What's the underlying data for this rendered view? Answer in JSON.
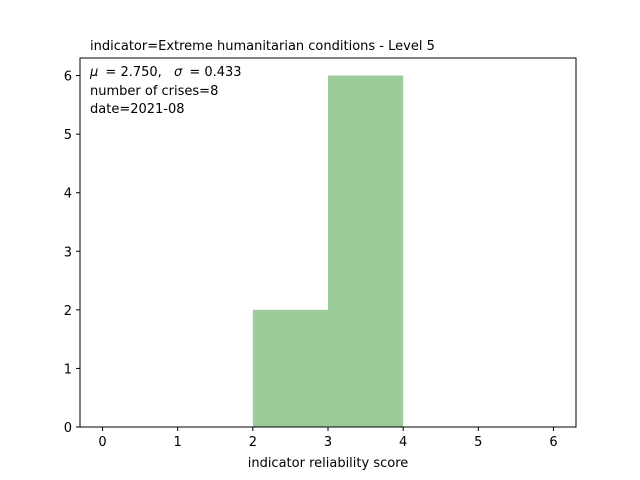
{
  "chart_data": {
    "type": "bar",
    "title": "indicator=Extreme humanitarian conditions - Level 5",
    "xlabel": "indicator reliability score",
    "ylabel": "",
    "bins": [
      {
        "x0": 2,
        "x1": 3,
        "value": 2
      },
      {
        "x0": 3,
        "x1": 4,
        "value": 6
      }
    ],
    "xlim": [
      -0.3,
      6.3
    ],
    "ylim": [
      0,
      6.3
    ],
    "xticks": [
      "0",
      "1",
      "2",
      "3",
      "4",
      "5",
      "6"
    ],
    "yticks": [
      "0",
      "1",
      "2",
      "3",
      "4",
      "5",
      "6"
    ],
    "bar_color": "#9ccc9a",
    "grid": false,
    "annotations": {
      "stats_mu_symbol": "μ",
      "stats_mu_value": "= 2.750,",
      "stats_sigma_symbol": "σ",
      "stats_sigma_value": "= 0.433",
      "line2": "number of crises=8",
      "line3": "date=2021-08"
    }
  }
}
